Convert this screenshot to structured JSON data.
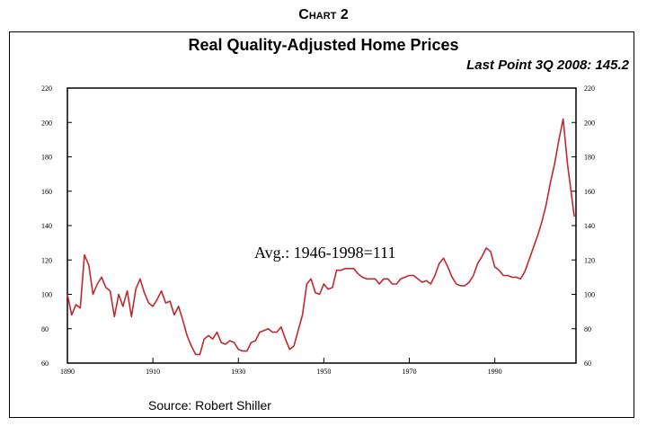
{
  "header": {
    "chart_label": "Chart 2",
    "title": "Real Quality-Adjusted Home Prices",
    "last_point": "Last Point 3Q 2008: 145.2",
    "source": "Source:  Robert Shiller"
  },
  "chart_data": {
    "type": "line",
    "title": "Real Quality-Adjusted Home Prices",
    "subtitle": "Last Point 3Q 2008: 145.2",
    "xlabel": "",
    "ylabel": "",
    "xlim": [
      1890,
      2009
    ],
    "ylim": [
      60,
      220
    ],
    "x_ticks": [
      1890,
      1910,
      1930,
      1950,
      1970,
      1990
    ],
    "y_ticks": [
      60,
      80,
      100,
      120,
      140,
      160,
      180,
      200,
      220
    ],
    "y_axis_both_sides": true,
    "grid": false,
    "line_color": "#c0282e",
    "annotation": "Avg.:  1946-1998=111",
    "x": [
      1890,
      1891,
      1892,
      1893,
      1894,
      1895,
      1896,
      1897,
      1898,
      1899,
      1900,
      1901,
      1902,
      1903,
      1904,
      1905,
      1906,
      1907,
      1908,
      1909,
      1910,
      1911,
      1912,
      1913,
      1914,
      1915,
      1916,
      1917,
      1918,
      1919,
      1920,
      1921,
      1922,
      1923,
      1924,
      1925,
      1926,
      1927,
      1928,
      1929,
      1930,
      1931,
      1932,
      1933,
      1934,
      1935,
      1936,
      1937,
      1938,
      1939,
      1940,
      1941,
      1942,
      1943,
      1944,
      1945,
      1946,
      1947,
      1948,
      1949,
      1950,
      1951,
      1952,
      1953,
      1954,
      1955,
      1956,
      1957,
      1958,
      1959,
      1960,
      1961,
      1962,
      1963,
      1964,
      1965,
      1966,
      1967,
      1968,
      1969,
      1970,
      1971,
      1972,
      1973,
      1974,
      1975,
      1976,
      1977,
      1978,
      1979,
      1980,
      1981,
      1982,
      1983,
      1984,
      1985,
      1986,
      1987,
      1988,
      1989,
      1990,
      1991,
      1992,
      1993,
      1994,
      1995,
      1996,
      1997,
      1998,
      1999,
      2000,
      2001,
      2002,
      2003,
      2004,
      2005,
      2006,
      2007,
      2008.6
    ],
    "y": [
      100,
      88,
      94,
      92,
      123,
      117,
      100,
      106,
      110,
      104,
      102,
      87,
      100,
      93,
      102,
      87,
      103,
      109,
      101,
      95,
      93,
      97,
      102,
      95,
      96,
      88,
      93,
      85,
      76,
      70,
      65,
      65,
      74,
      76,
      74,
      78,
      72,
      71,
      73,
      72,
      68,
      67,
      67,
      72,
      73,
      78,
      79,
      80,
      78,
      78,
      81,
      74,
      68,
      70,
      79,
      88,
      106,
      109,
      101,
      100,
      106,
      103,
      104,
      114,
      114,
      115,
      115,
      115,
      112,
      110,
      109,
      109,
      109,
      106,
      109,
      109,
      106,
      106,
      109,
      110,
      111,
      111,
      109,
      107,
      108,
      106,
      111,
      118,
      121,
      116,
      110,
      106,
      105,
      105,
      107,
      111,
      118,
      122,
      127,
      125,
      116,
      114,
      111,
      111,
      110,
      110,
      109,
      113,
      120,
      127,
      134,
      142,
      152,
      165,
      176,
      190,
      202,
      176,
      145.2
    ]
  }
}
